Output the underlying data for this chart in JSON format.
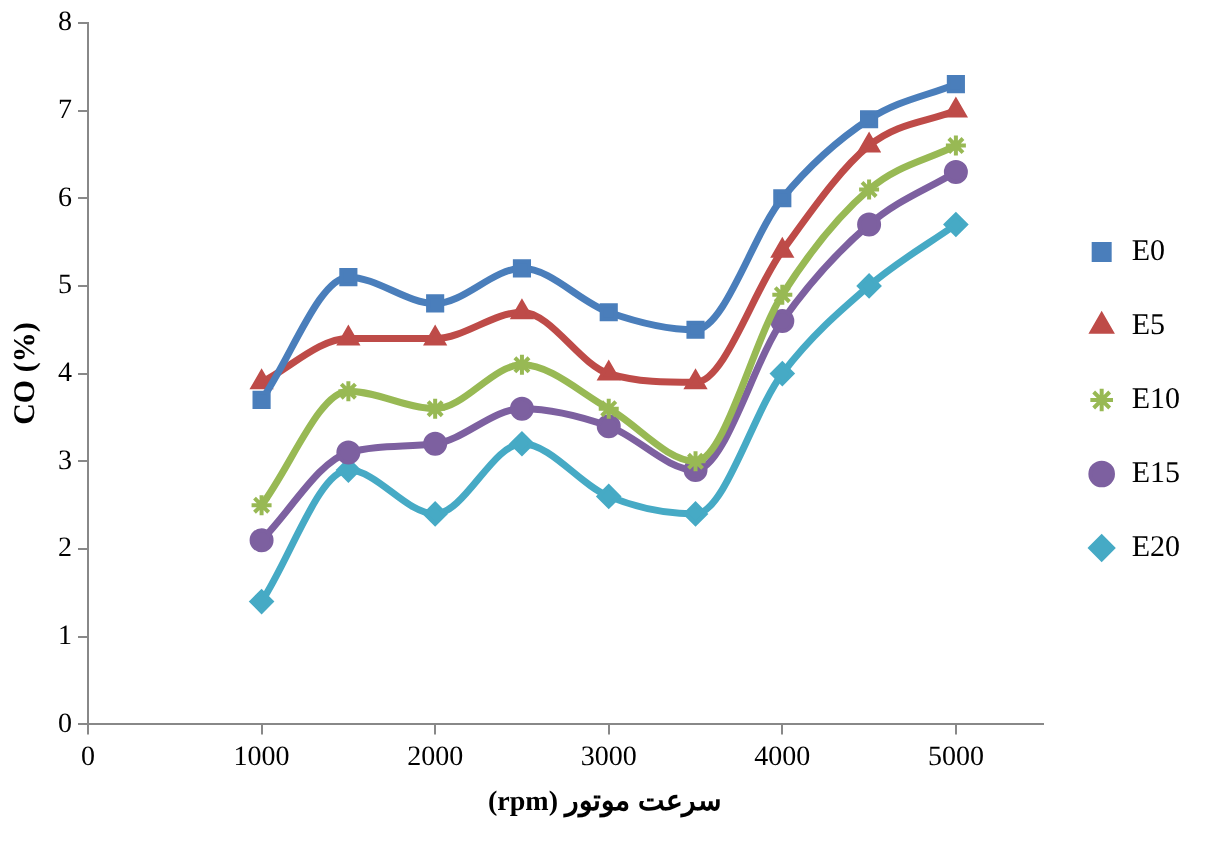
{
  "chart_data": {
    "type": "line",
    "xlabel": "سرعت موتور (rpm)",
    "ylabel": "CO (%)",
    "x": [
      1000,
      1500,
      2000,
      2500,
      3000,
      3500,
      4000,
      4500,
      5000
    ],
    "xlim": [
      0,
      5500
    ],
    "xticks": [
      0,
      1000,
      2000,
      3000,
      4000,
      5000
    ],
    "ylim": [
      0,
      8
    ],
    "yticks": [
      0,
      1,
      2,
      3,
      4,
      5,
      6,
      7,
      8
    ],
    "grid": false,
    "legend": "right",
    "line_style": "solid",
    "series": [
      {
        "name": "E0",
        "color": "#4a7ebb",
        "marker": "square",
        "values": [
          3.7,
          5.1,
          4.8,
          5.2,
          4.7,
          4.5,
          6.0,
          6.9,
          7.3
        ]
      },
      {
        "name": "E5",
        "color": "#be4b48",
        "marker": "triangle",
        "values": [
          3.9,
          4.4,
          4.4,
          4.7,
          4.0,
          3.9,
          5.4,
          6.6,
          7.0
        ]
      },
      {
        "name": "E10",
        "color": "#98b954",
        "marker": "cross",
        "values": [
          2.5,
          3.8,
          3.6,
          4.1,
          3.6,
          3.0,
          4.9,
          6.1,
          6.6
        ]
      },
      {
        "name": "E15",
        "color": "#7d60a0",
        "marker": "circle",
        "values": [
          2.1,
          3.1,
          3.2,
          3.6,
          3.4,
          2.9,
          4.6,
          5.7,
          6.3
        ]
      },
      {
        "name": "E20",
        "color": "#46aac5",
        "marker": "diamond",
        "values": [
          1.4,
          2.9,
          2.4,
          3.2,
          2.6,
          2.4,
          4.0,
          5.0,
          5.7
        ]
      }
    ]
  }
}
